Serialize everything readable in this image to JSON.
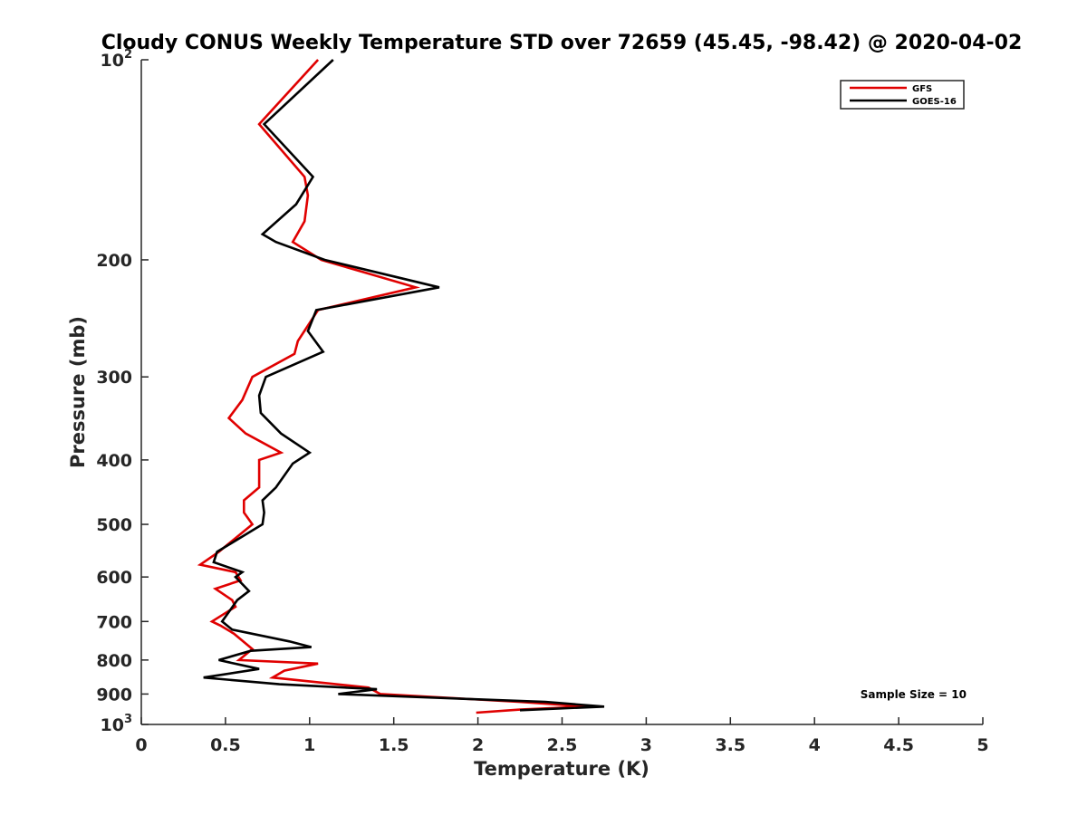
{
  "chart_data": {
    "type": "line",
    "title": "Cloudy CONUS Weekly Temperature STD over 72659 (45.45, -98.42) @ 2020-04-02",
    "xlabel": "Temperature (K)",
    "ylabel": "Pressure (mb)",
    "xlim": [
      0,
      5
    ],
    "ylim": [
      1000,
      100
    ],
    "y_scale": "log",
    "y_reversed": true,
    "grid": false,
    "legend_position": "top-right",
    "x_ticks": [
      0,
      0.5,
      1,
      1.5,
      2,
      2.5,
      3,
      3.5,
      4,
      4.5,
      5
    ],
    "x_tick_labels": [
      "0",
      "0.5",
      "1",
      "1.5",
      "2",
      "2.5",
      "3",
      "3.5",
      "4",
      "4.5",
      "5"
    ],
    "y_ticks": [
      100,
      200,
      300,
      400,
      500,
      600,
      700,
      800,
      900,
      1000
    ],
    "y_tick_labels": [
      {
        "base": "10",
        "exp": "2"
      },
      {
        "base": "200",
        "exp": ""
      },
      {
        "base": "300",
        "exp": ""
      },
      {
        "base": "400",
        "exp": ""
      },
      {
        "base": "500",
        "exp": ""
      },
      {
        "base": "600",
        "exp": ""
      },
      {
        "base": "700",
        "exp": ""
      },
      {
        "base": "800",
        "exp": ""
      },
      {
        "base": "900",
        "exp": ""
      },
      {
        "base": "10",
        "exp": "3"
      }
    ],
    "series": [
      {
        "name": "GFS",
        "color": "#e00000",
        "points": [
          [
            1.05,
            100
          ],
          [
            0.7,
            125
          ],
          [
            0.97,
            150
          ],
          [
            0.99,
            160
          ],
          [
            0.97,
            175
          ],
          [
            0.9,
            188
          ],
          [
            1.07,
            200
          ],
          [
            1.63,
            220
          ],
          [
            1.05,
            238
          ],
          [
            0.93,
            265
          ],
          [
            0.91,
            277
          ],
          [
            0.66,
            300
          ],
          [
            0.6,
            325
          ],
          [
            0.52,
            346
          ],
          [
            0.62,
            365
          ],
          [
            0.83,
            390
          ],
          [
            0.7,
            400
          ],
          [
            0.7,
            440
          ],
          [
            0.61,
            460
          ],
          [
            0.61,
            480
          ],
          [
            0.66,
            500
          ],
          [
            0.46,
            550
          ],
          [
            0.35,
            575
          ],
          [
            0.56,
            590
          ],
          [
            0.59,
            607
          ],
          [
            0.44,
            625
          ],
          [
            0.54,
            650
          ],
          [
            0.56,
            665
          ],
          [
            0.42,
            700
          ],
          [
            0.47,
            710
          ],
          [
            0.55,
            730
          ],
          [
            0.66,
            770
          ],
          [
            0.58,
            800
          ],
          [
            1.05,
            810
          ],
          [
            0.85,
            830
          ],
          [
            0.78,
            850
          ],
          [
            1.35,
            880
          ],
          [
            1.42,
            900
          ],
          [
            2.25,
            925
          ],
          [
            2.65,
            940
          ],
          [
            2.25,
            950
          ],
          [
            1.99,
            960
          ]
        ]
      },
      {
        "name": "GOES-16",
        "color": "#000000",
        "points": [
          [
            1.14,
            100
          ],
          [
            0.73,
            125
          ],
          [
            1.02,
            150
          ],
          [
            0.92,
            165
          ],
          [
            0.72,
            183
          ],
          [
            0.8,
            188
          ],
          [
            1.09,
            200
          ],
          [
            1.77,
            220
          ],
          [
            1.04,
            238
          ],
          [
            0.99,
            256
          ],
          [
            1.08,
            275
          ],
          [
            0.74,
            300
          ],
          [
            0.7,
            320
          ],
          [
            0.71,
            340
          ],
          [
            0.83,
            365
          ],
          [
            1.0,
            390
          ],
          [
            0.9,
            405
          ],
          [
            0.8,
            440
          ],
          [
            0.72,
            460
          ],
          [
            0.73,
            480
          ],
          [
            0.72,
            500
          ],
          [
            0.45,
            550
          ],
          [
            0.43,
            570
          ],
          [
            0.6,
            590
          ],
          [
            0.56,
            600
          ],
          [
            0.64,
            630
          ],
          [
            0.57,
            650
          ],
          [
            0.48,
            700
          ],
          [
            0.54,
            720
          ],
          [
            0.88,
            750
          ],
          [
            1.01,
            765
          ],
          [
            0.65,
            775
          ],
          [
            0.46,
            800
          ],
          [
            0.7,
            825
          ],
          [
            0.37,
            850
          ],
          [
            0.82,
            870
          ],
          [
            1.4,
            885
          ],
          [
            1.17,
            900
          ],
          [
            2.4,
            925
          ],
          [
            2.75,
            940
          ],
          [
            2.25,
            952
          ]
        ]
      }
    ],
    "annotation": "Sample Size = 10"
  }
}
